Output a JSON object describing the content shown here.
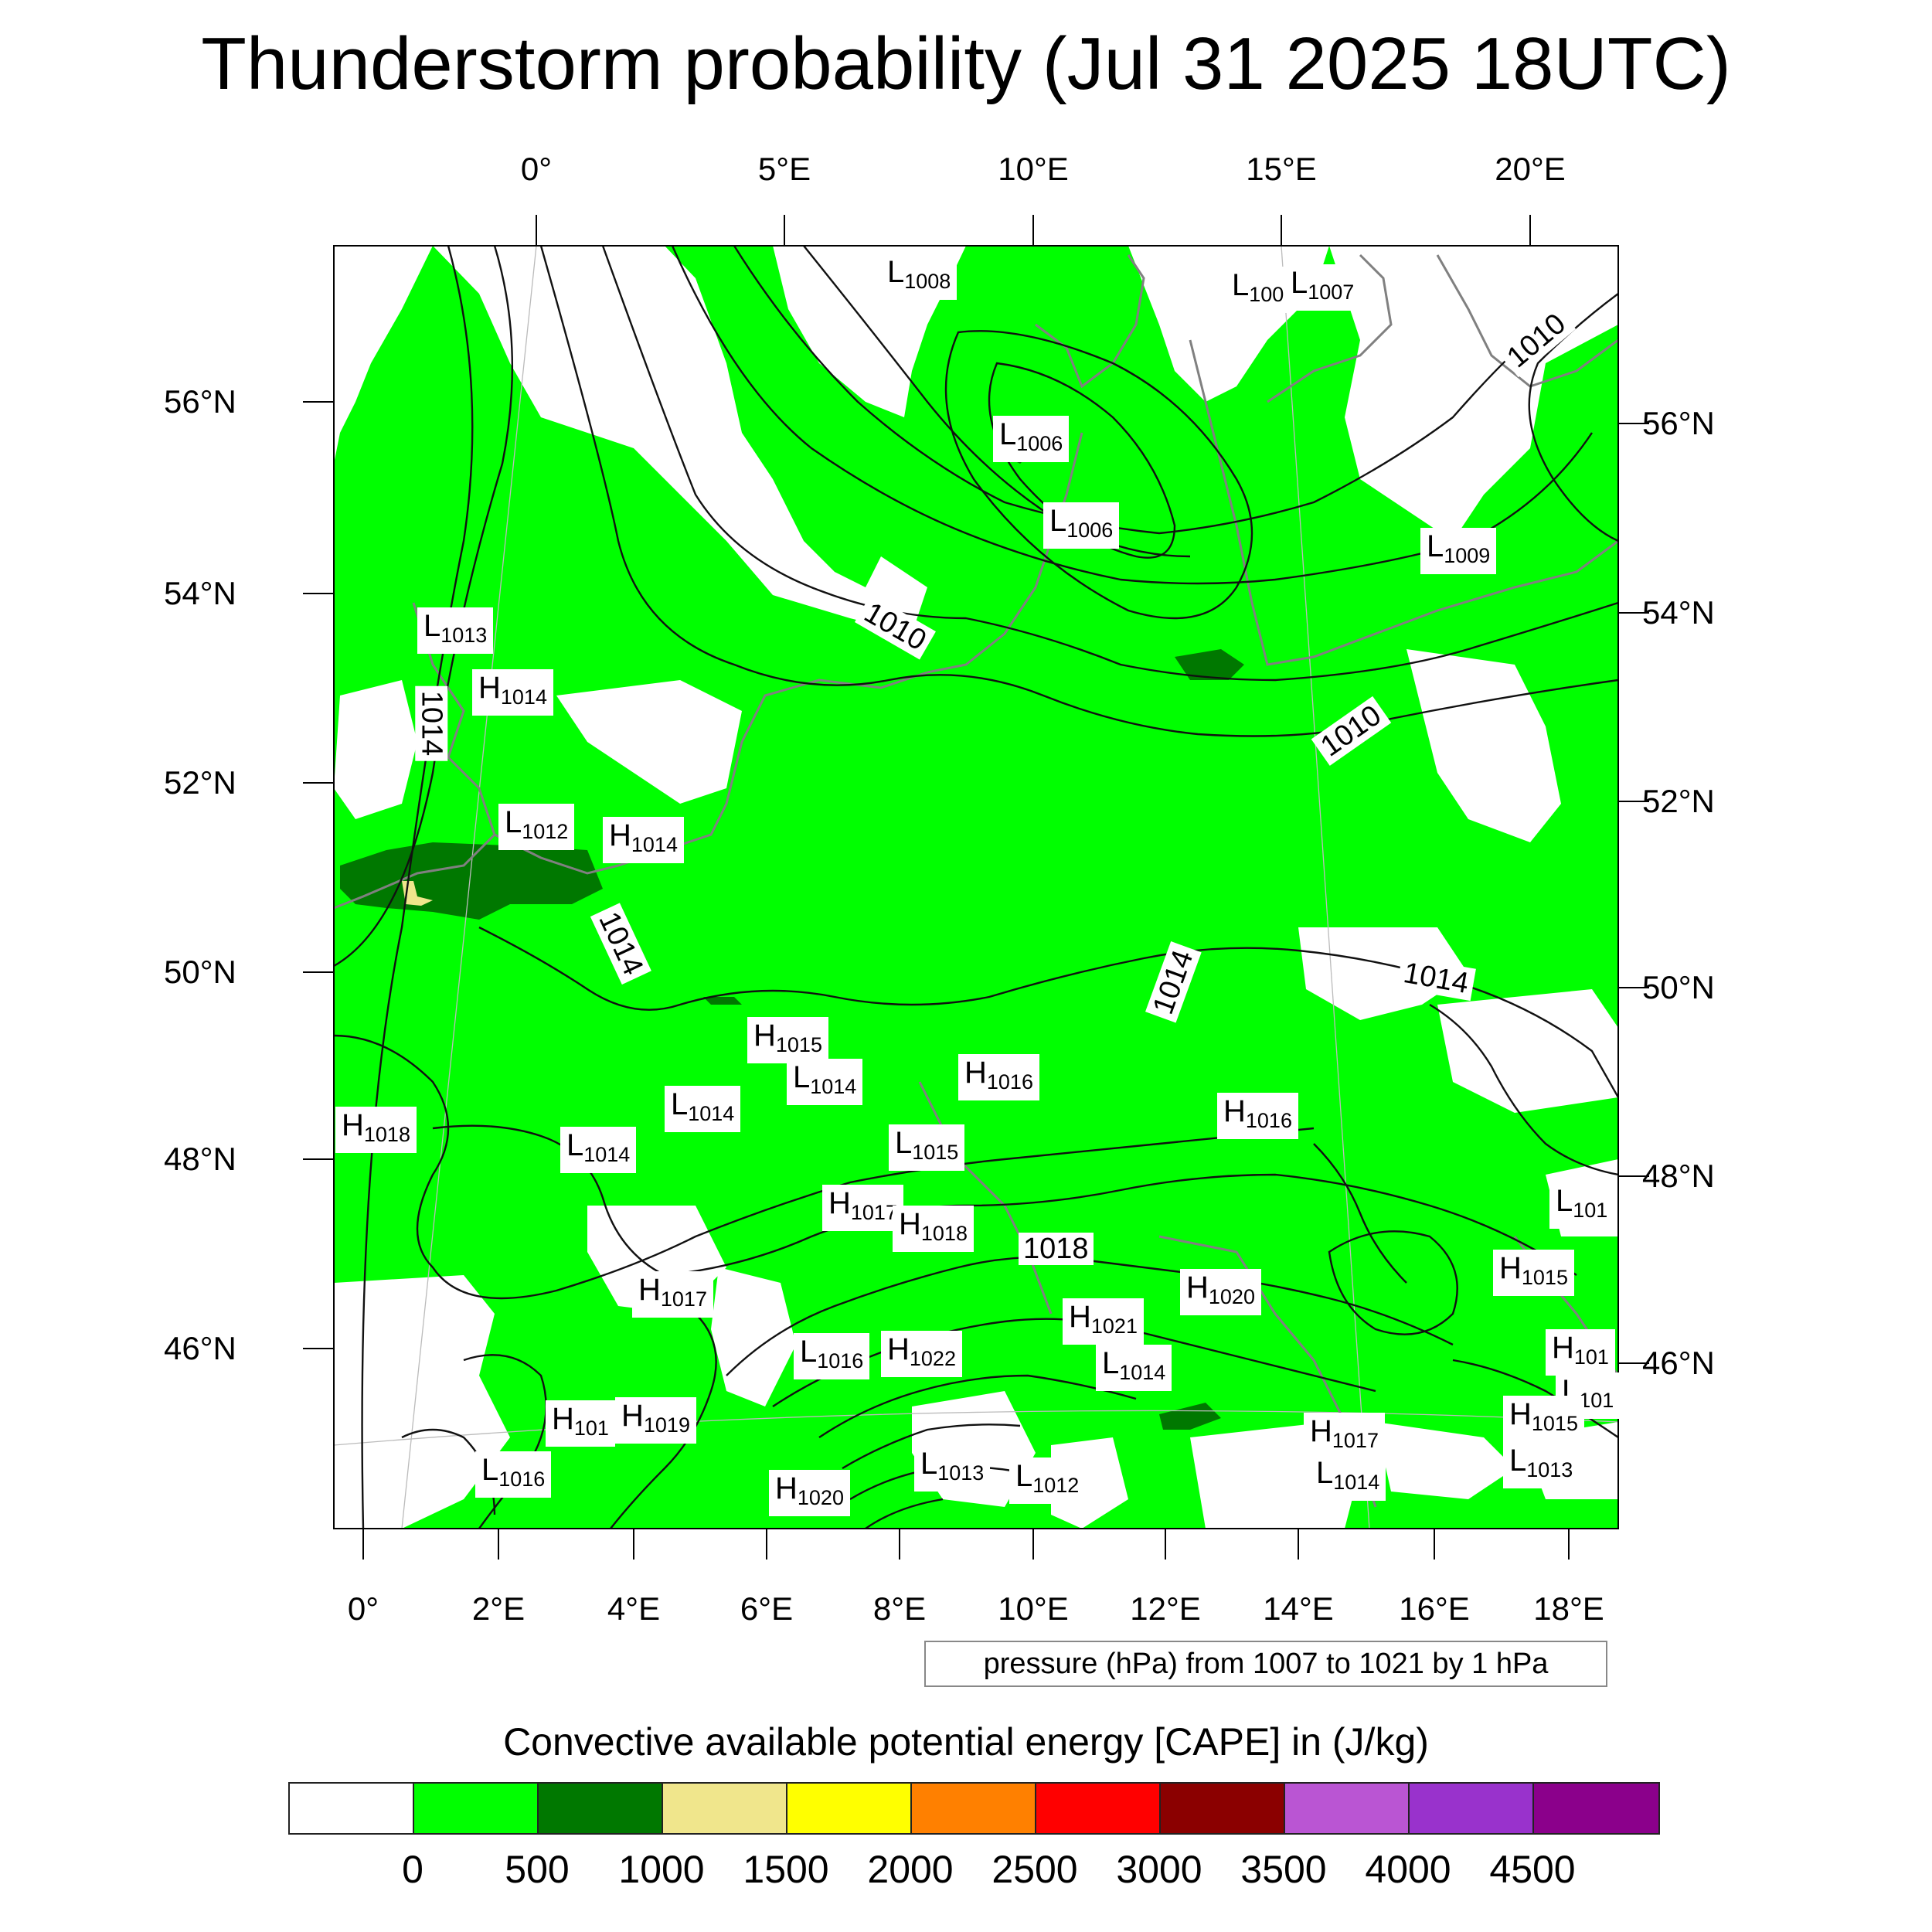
{
  "title": "Thunderstorm probability (Jul 31 2025 18UTC)",
  "top_lon_labels": [
    "0°",
    "5°E",
    "10°E",
    "15°E",
    "20°E"
  ],
  "bottom_lon_labels": [
    "0°",
    "2°E",
    "4°E",
    "6°E",
    "8°E",
    "10°E",
    "12°E",
    "14°E",
    "16°E",
    "18°E"
  ],
  "left_lat_labels": [
    "56°N",
    "54°N",
    "52°N",
    "50°N",
    "48°N",
    "46°N"
  ],
  "right_lat_labels": [
    "56°N",
    "54°N",
    "52°N",
    "50°N",
    "48°N",
    "46°N"
  ],
  "pressure_centers": [
    {
      "letter": "L",
      "value": "1008"
    },
    {
      "letter": "L",
      "value": "100"
    },
    {
      "letter": "L",
      "value": "1007"
    },
    {
      "letter": "L",
      "value": "1006"
    },
    {
      "letter": "L",
      "value": "1006"
    },
    {
      "letter": "L",
      "value": "1009"
    },
    {
      "letter": "L",
      "value": "1013"
    },
    {
      "letter": "H",
      "value": "1014"
    },
    {
      "letter": "L",
      "value": "1012"
    },
    {
      "letter": "H",
      "value": "1014"
    },
    {
      "letter": "H",
      "value": "1015"
    },
    {
      "letter": "L",
      "value": "1014"
    },
    {
      "letter": "H",
      "value": "1016"
    },
    {
      "letter": "L",
      "value": "1014"
    },
    {
      "letter": "H",
      "value": "1018"
    },
    {
      "letter": "L",
      "value": "1014"
    },
    {
      "letter": "L",
      "value": "1015"
    },
    {
      "letter": "H",
      "value": "1016"
    },
    {
      "letter": "H",
      "value": "1017"
    },
    {
      "letter": "H",
      "value": "1018"
    },
    {
      "letter": "L",
      "value": "101"
    },
    {
      "letter": "H",
      "value": "1017"
    },
    {
      "letter": "H",
      "value": "1020"
    },
    {
      "letter": "H",
      "value": "1021"
    },
    {
      "letter": "H",
      "value": "1015"
    },
    {
      "letter": "L",
      "value": "1016"
    },
    {
      "letter": "H",
      "value": "1022"
    },
    {
      "letter": "L",
      "value": "1014"
    },
    {
      "letter": "H",
      "value": "101"
    },
    {
      "letter": "H",
      "value": "101"
    },
    {
      "letter": "H",
      "value": "1019"
    },
    {
      "letter": "L",
      "value": "101"
    },
    {
      "letter": "H",
      "value": "1015"
    },
    {
      "letter": "L",
      "value": "1016"
    },
    {
      "letter": "L",
      "value": "1013"
    },
    {
      "letter": "L",
      "value": "1012"
    },
    {
      "letter": "H",
      "value": "1017"
    },
    {
      "letter": "L",
      "value": "1014"
    },
    {
      "letter": "L",
      "value": "1013"
    },
    {
      "letter": "H",
      "value": "1020"
    }
  ],
  "contour_labels": [
    "1010",
    "1010",
    "1010",
    "1014",
    "1014",
    "1014",
    "1014",
    "1018"
  ],
  "pressure_info": "pressure (hPa) from 1007 to 1021 by 1 hPa",
  "colorbar": {
    "title": "Convective available potential energy [CAPE] in (J/kg)",
    "colors": [
      "#ffffff",
      "#00ff00",
      "#007800",
      "#f0e68c",
      "#ffff00",
      "#ff8000",
      "#ff0000",
      "#8b0000",
      "#ba55d3",
      "#9932cc",
      "#8b008b"
    ],
    "tick_labels": [
      "0",
      "500",
      "1000",
      "1500",
      "2000",
      "2500",
      "3000",
      "3500",
      "4000",
      "4500"
    ]
  }
}
